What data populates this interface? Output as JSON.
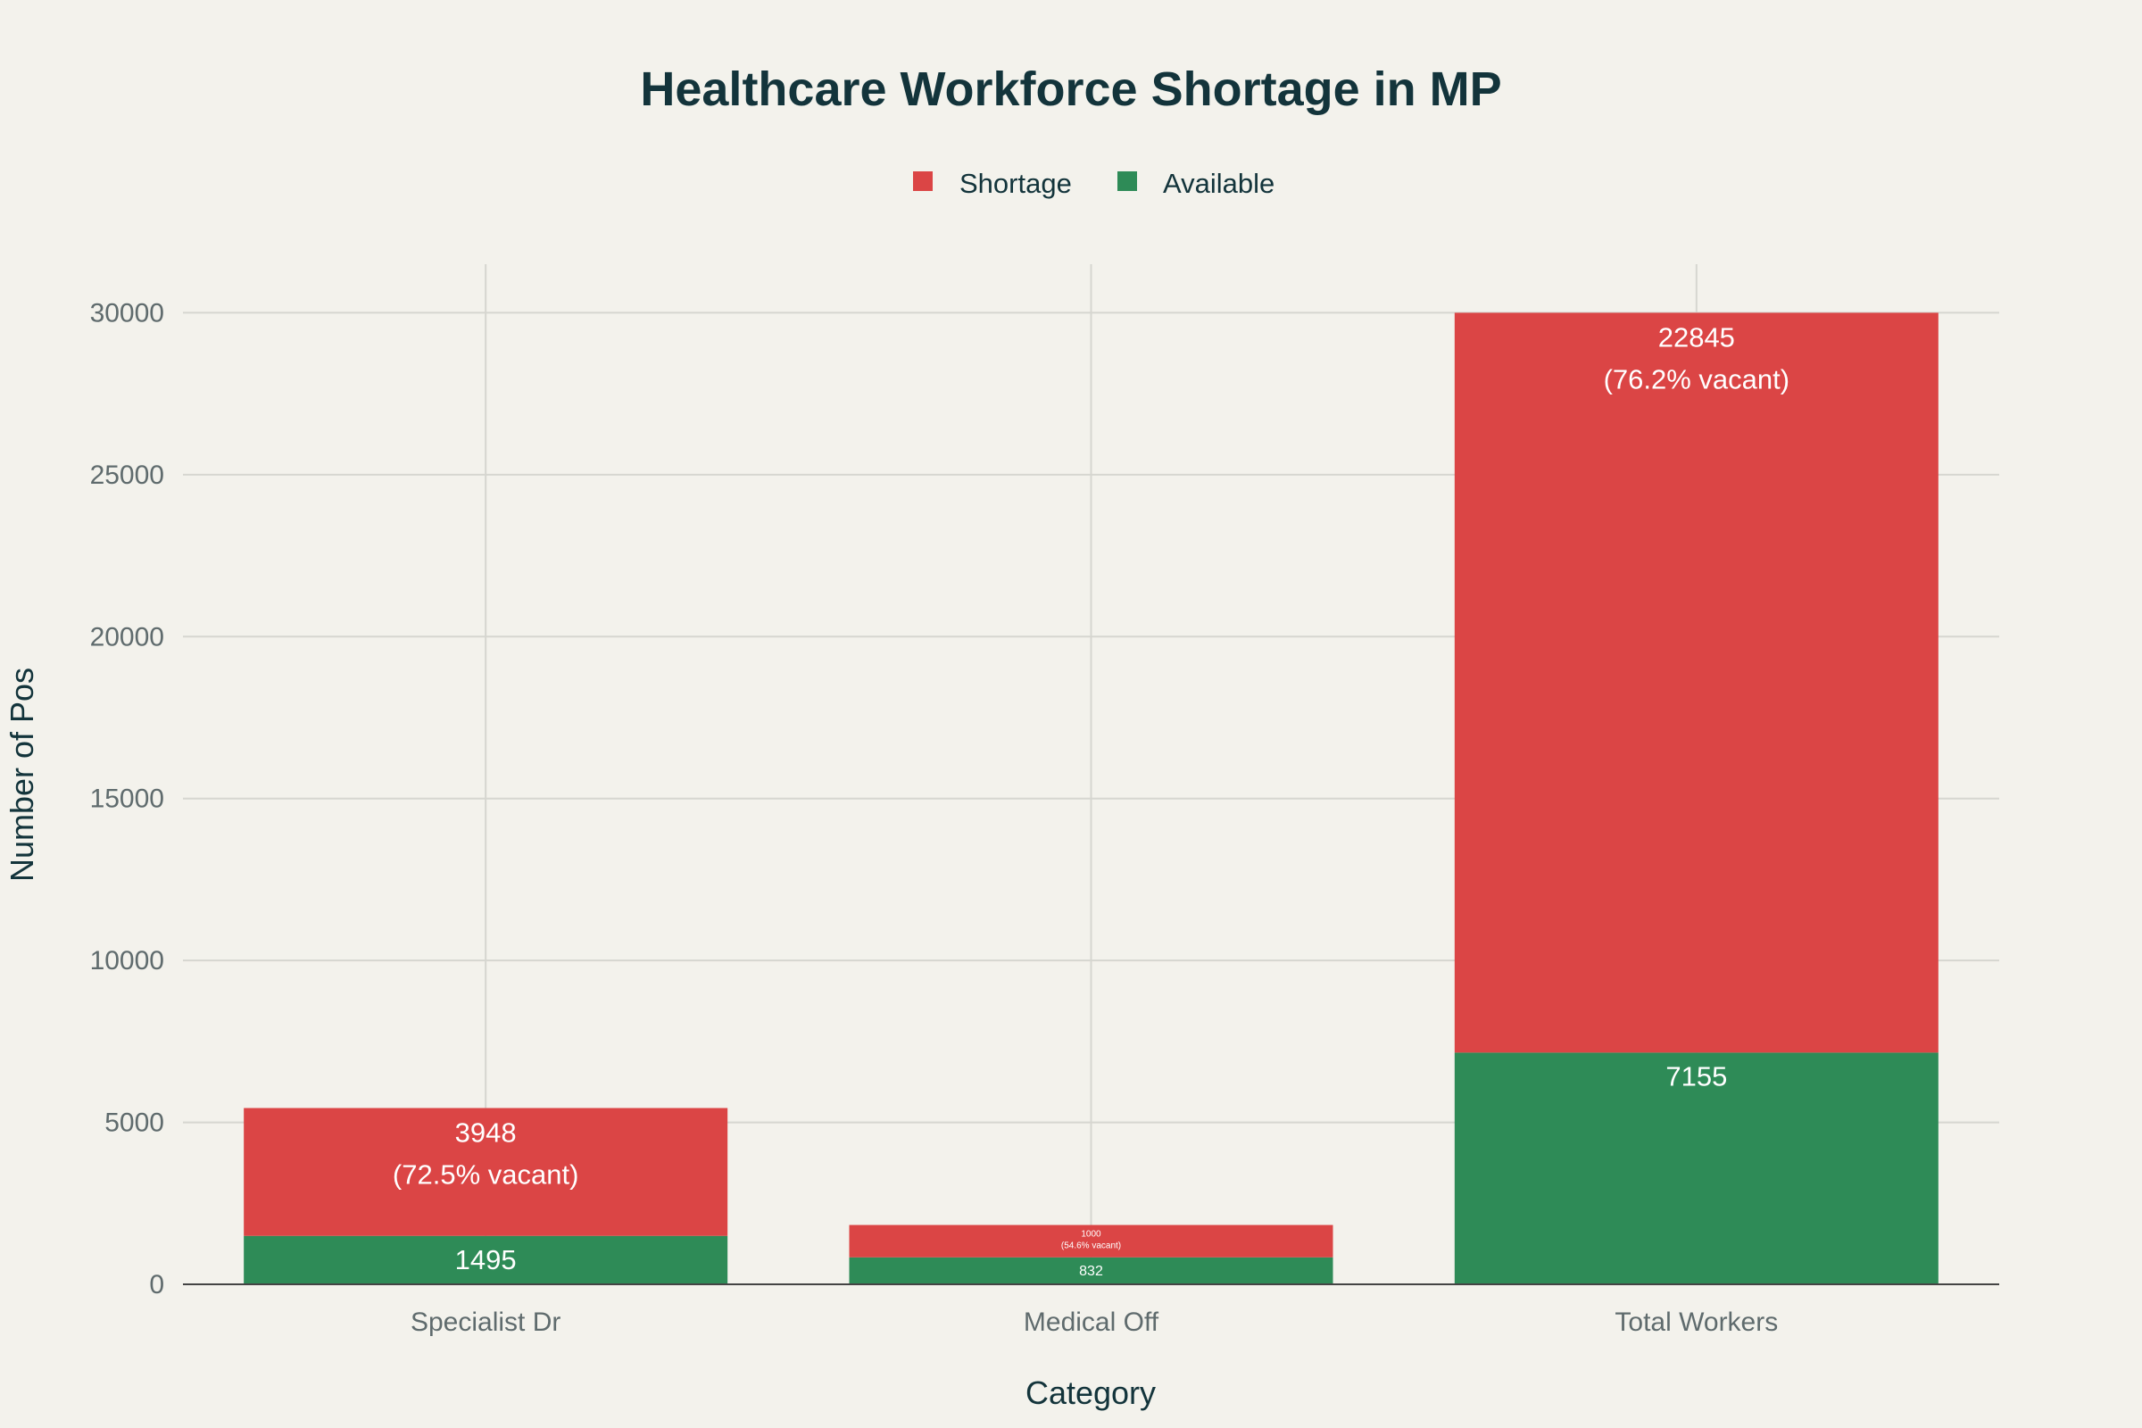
{
  "chart_data": {
    "type": "bar",
    "stacked": true,
    "title": "Healthcare Workforce Shortage in MP",
    "xlabel": "Category",
    "ylabel": "Number of Pos",
    "categories": [
      "Specialist Dr",
      "Medical Off",
      "Total Workers"
    ],
    "series": [
      {
        "name": "Available",
        "color": "#2E8B57",
        "values": [
          1495,
          832,
          7155
        ],
        "labels": [
          "1495",
          "832",
          "7155"
        ]
      },
      {
        "name": "Shortage",
        "color": "#DB4545",
        "values": [
          3948,
          1000,
          22845
        ],
        "labels": [
          "3948",
          "1000",
          "22845"
        ],
        "sublabels": [
          "(72.5% vacant)",
          "(54.6% vacant)",
          "(76.2% vacant)"
        ]
      }
    ],
    "legend": {
      "entries": [
        "Shortage",
        "Available"
      ],
      "placement": "top-center"
    },
    "ylim": [
      0,
      31500
    ],
    "yticks": [
      0,
      5000,
      10000,
      15000,
      20000,
      25000,
      30000
    ],
    "grid": true
  }
}
